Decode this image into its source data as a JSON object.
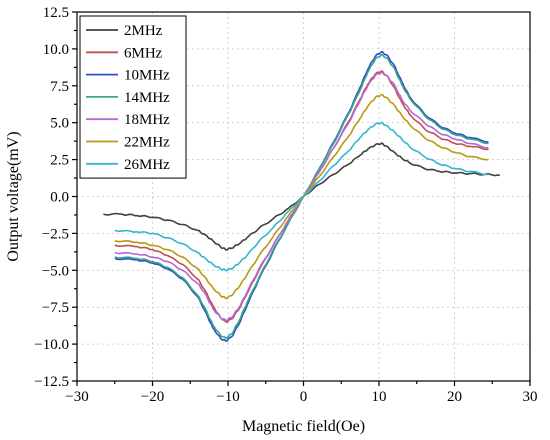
{
  "chart_data": {
    "type": "line",
    "title": "",
    "xlabel": "Magnetic field(Oe)",
    "ylabel": "Output voltage(mV)",
    "xlim": [
      -30,
      30
    ],
    "ylim": [
      -12.5,
      12.5
    ],
    "xticks": [
      -30,
      -20,
      -10,
      0,
      10,
      20,
      30
    ],
    "yticks": [
      -12.5,
      -10.0,
      -7.5,
      -5.0,
      -2.5,
      0.0,
      2.5,
      5.0,
      7.5,
      10.0,
      12.5
    ],
    "xtick_labels": [
      "−30",
      "−20",
      "−10",
      "0",
      "10",
      "20",
      "30"
    ],
    "ytick_labels": [
      "−12.5",
      "−10.0",
      "−7.5",
      "−5.0",
      "−2.5",
      "0.0",
      "2.5",
      "5.0",
      "7.5",
      "10.0",
      "12.5"
    ],
    "grid": true,
    "legend_position": "top-left",
    "series": [
      {
        "name": "2MHz",
        "color": "#404040",
        "x": [
          -26.5,
          -24,
          -22,
          -20,
          -18,
          -16,
          -14,
          -13,
          -12,
          -11,
          -10.3,
          -9.5,
          -8.5,
          -7.5,
          -6,
          -4,
          -2,
          0,
          2,
          4,
          6,
          7.5,
          8.5,
          9.5,
          10.3,
          11,
          12,
          13,
          14,
          16,
          18,
          20,
          22,
          24,
          26
        ],
        "y": [
          -1.2,
          -1.2,
          -1.3,
          -1.4,
          -1.6,
          -1.9,
          -2.3,
          -2.6,
          -3.0,
          -3.4,
          -3.6,
          -3.5,
          -3.2,
          -2.8,
          -2.2,
          -1.5,
          -0.8,
          0.0,
          0.8,
          1.5,
          2.2,
          2.8,
          3.2,
          3.5,
          3.6,
          3.4,
          3.0,
          2.6,
          2.3,
          1.9,
          1.7,
          1.6,
          1.55,
          1.5,
          1.45
        ]
      },
      {
        "name": "6MHz",
        "color": "#c0504d",
        "x": [
          -25,
          -22,
          -20,
          -18,
          -16,
          -14,
          -13,
          -12,
          -11,
          -10.3,
          -9.5,
          -8.5,
          -7.5,
          -6,
          -4,
          -2,
          0,
          2,
          4,
          6,
          7.5,
          8.5,
          9.5,
          10.3,
          11,
          12,
          13,
          14,
          16,
          18,
          20,
          22,
          24.5
        ],
        "y": [
          -3.3,
          -3.4,
          -3.6,
          -4.0,
          -4.6,
          -5.6,
          -6.4,
          -7.4,
          -8.2,
          -8.5,
          -8.3,
          -7.6,
          -6.6,
          -5.1,
          -3.3,
          -1.6,
          0.0,
          1.6,
          3.3,
          5.1,
          6.6,
          7.6,
          8.3,
          8.5,
          8.2,
          7.4,
          6.4,
          5.6,
          4.6,
          4.0,
          3.6,
          3.4,
          3.2
        ]
      },
      {
        "name": "10MHz",
        "color": "#2e4fc9",
        "x": [
          -25,
          -22,
          -20,
          -18,
          -16,
          -14,
          -13,
          -12,
          -11,
          -10.3,
          -9.5,
          -8.5,
          -7.5,
          -6,
          -4,
          -2,
          0,
          2,
          4,
          6,
          7.5,
          8.5,
          9.5,
          10.3,
          11,
          12,
          13,
          14,
          16,
          18,
          20,
          22,
          24.5
        ],
        "y": [
          -4.2,
          -4.3,
          -4.5,
          -4.9,
          -5.6,
          -6.8,
          -7.8,
          -8.9,
          -9.6,
          -9.8,
          -9.5,
          -8.6,
          -7.4,
          -5.7,
          -3.7,
          -1.8,
          0.0,
          1.8,
          3.7,
          5.7,
          7.4,
          8.6,
          9.5,
          9.8,
          9.6,
          8.9,
          7.8,
          6.8,
          5.6,
          4.8,
          4.3,
          4.0,
          3.7
        ]
      },
      {
        "name": "14MHz",
        "color": "#3aa889",
        "x": [
          -25,
          -22,
          -20,
          -18,
          -16,
          -14,
          -13,
          -12,
          -11,
          -10.3,
          -9.5,
          -8.5,
          -7.5,
          -6,
          -4,
          -2,
          0,
          2,
          4,
          6,
          7.5,
          8.5,
          9.5,
          10.3,
          11,
          12,
          13,
          14,
          16,
          18,
          20,
          22,
          24.5
        ],
        "y": [
          -4.1,
          -4.2,
          -4.4,
          -4.8,
          -5.5,
          -6.7,
          -7.6,
          -8.7,
          -9.4,
          -9.6,
          -9.3,
          -8.4,
          -7.2,
          -5.6,
          -3.6,
          -1.8,
          0.0,
          1.8,
          3.6,
          5.6,
          7.2,
          8.4,
          9.3,
          9.6,
          9.4,
          8.7,
          7.6,
          6.7,
          5.5,
          4.7,
          4.2,
          3.9,
          3.6
        ]
      },
      {
        "name": "18MHz",
        "color": "#b468d6",
        "x": [
          -25,
          -22,
          -20,
          -18,
          -16,
          -14,
          -13,
          -12,
          -11,
          -10.3,
          -9.5,
          -8.5,
          -7.5,
          -6,
          -4,
          -2,
          0,
          2,
          4,
          6,
          7.5,
          8.5,
          9.5,
          10.3,
          11,
          12,
          13,
          14,
          16,
          18,
          20,
          22,
          24.5
        ],
        "y": [
          -3.8,
          -3.9,
          -4.1,
          -4.4,
          -5.0,
          -5.9,
          -6.6,
          -7.6,
          -8.2,
          -8.4,
          -8.2,
          -7.5,
          -6.5,
          -5.0,
          -3.3,
          -1.6,
          0.0,
          1.6,
          3.3,
          5.0,
          6.5,
          7.5,
          8.2,
          8.4,
          8.2,
          7.6,
          6.6,
          5.9,
          5.0,
          4.3,
          3.9,
          3.6,
          3.3
        ]
      },
      {
        "name": "22MHz",
        "color": "#b89a10",
        "x": [
          -25,
          -22,
          -20,
          -18,
          -16,
          -14,
          -13,
          -12,
          -11,
          -10.3,
          -9.5,
          -8.5,
          -7.5,
          -6,
          -4,
          -2,
          0,
          2,
          4,
          6,
          7.5,
          8.5,
          9.5,
          10.3,
          11,
          12,
          13,
          14,
          16,
          18,
          20,
          22,
          24.5
        ],
        "y": [
          -3.0,
          -3.1,
          -3.3,
          -3.6,
          -4.1,
          -4.9,
          -5.5,
          -6.2,
          -6.7,
          -6.9,
          -6.7,
          -6.1,
          -5.3,
          -4.1,
          -2.7,
          -1.3,
          0.0,
          1.3,
          2.7,
          4.1,
          5.3,
          6.1,
          6.7,
          6.9,
          6.7,
          6.2,
          5.5,
          4.9,
          4.0,
          3.4,
          3.0,
          2.7,
          2.5
        ]
      },
      {
        "name": "26MHz",
        "color": "#33b6d1",
        "x": [
          -25,
          -22,
          -20,
          -18,
          -16,
          -14,
          -13,
          -12,
          -11,
          -10.3,
          -9.5,
          -8.5,
          -7.5,
          -6,
          -4,
          -2,
          0,
          2,
          4,
          6,
          7.5,
          8.5,
          9.5,
          10.3,
          11,
          12,
          13,
          14,
          16,
          18,
          20,
          22,
          24.5
        ],
        "y": [
          -2.3,
          -2.4,
          -2.5,
          -2.8,
          -3.2,
          -3.8,
          -4.2,
          -4.6,
          -4.9,
          -5.0,
          -4.9,
          -4.5,
          -4.0,
          -3.1,
          -2.1,
          -1.0,
          0.0,
          1.0,
          2.1,
          3.1,
          4.0,
          4.5,
          4.9,
          5.0,
          4.8,
          4.4,
          3.9,
          3.4,
          2.7,
          2.2,
          1.9,
          1.7,
          1.5
        ]
      }
    ]
  }
}
